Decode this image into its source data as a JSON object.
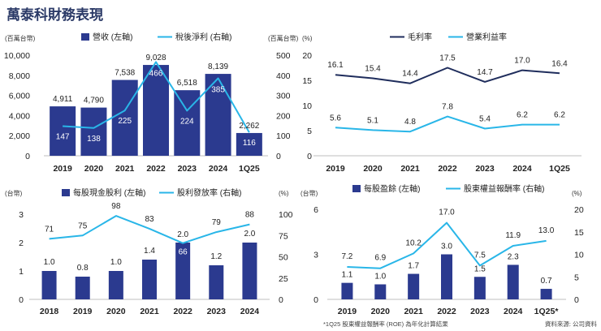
{
  "page": {
    "title": "萬泰科財務表現",
    "footnote": "*1Q25 股東權益報酬率 (ROE) 為年化計算結果",
    "source": "資料來源: 公司資料"
  },
  "colors": {
    "bar": "#2b3a8f",
    "line": "#29b6e8"
  },
  "chart_data": [
    {
      "id": "revenue_net_income",
      "type": "bar+line",
      "categories": [
        "2019",
        "2020",
        "2021",
        "2022",
        "2023",
        "2024",
        "1Q25"
      ],
      "left_unit": "(百萬台幣)",
      "right_unit": "(百萬台幣)",
      "left_ticks": [
        "0",
        "2,000",
        "4,000",
        "6,000",
        "8,000",
        "10,000"
      ],
      "right_ticks": [
        "0",
        "100",
        "200",
        "300",
        "400",
        "500"
      ],
      "ylim_left": [
        0,
        10000
      ],
      "ylim_right": [
        0,
        500
      ],
      "series": [
        {
          "name": "營收 (左軸)",
          "kind": "bar",
          "axis": "left",
          "values": [
            4911,
            4790,
            7538,
            9028,
            6518,
            8139,
            2262
          ],
          "labels": [
            "4,911",
            "4,790",
            "7,538",
            "9,028",
            "6,518",
            "8,139",
            "2,262"
          ]
        },
        {
          "name": "稅後淨利 (右軸)",
          "kind": "line",
          "axis": "right",
          "values": [
            147,
            138,
            225,
            466,
            224,
            385,
            116
          ],
          "labels": [
            "147",
            "138",
            "225",
            "466",
            "224",
            "385",
            "116"
          ]
        }
      ]
    },
    {
      "id": "margins",
      "type": "line",
      "categories": [
        "2019",
        "2020",
        "2021",
        "2022",
        "2023",
        "2024",
        "1Q25"
      ],
      "left_unit": "(%)",
      "left_ticks": [
        "0",
        "5",
        "10",
        "15",
        "20"
      ],
      "ylim_left": [
        0,
        20
      ],
      "series": [
        {
          "name": "毛利率",
          "kind": "line",
          "axis": "left",
          "color": "#1f2d5c",
          "values": [
            16.1,
            15.4,
            14.4,
            17.5,
            14.7,
            17.0,
            16.4
          ],
          "labels": [
            "16.1",
            "15.4",
            "14.4",
            "17.5",
            "14.7",
            "17.0",
            "16.4"
          ]
        },
        {
          "name": "營業利益率",
          "kind": "line",
          "axis": "left",
          "color": "#29b6e8",
          "values": [
            5.6,
            5.1,
            4.8,
            7.8,
            5.4,
            6.2,
            6.2
          ],
          "labels": [
            "5.6",
            "5.1",
            "4.8",
            "7.8",
            "5.4",
            "6.2",
            "6.2"
          ]
        }
      ]
    },
    {
      "id": "dividends",
      "type": "bar+line",
      "categories": [
        "2018",
        "2019",
        "2020",
        "2021",
        "2022",
        "2023",
        "2024"
      ],
      "left_unit": "(台幣)",
      "right_unit": "(%)",
      "left_ticks": [
        "0",
        "1",
        "2",
        "3"
      ],
      "right_ticks": [
        "0",
        "25",
        "50",
        "75",
        "100"
      ],
      "ylim_left": [
        0,
        3
      ],
      "ylim_right": [
        0,
        100
      ],
      "series": [
        {
          "name": "每股現金股利 (左軸)",
          "kind": "bar",
          "axis": "left",
          "values": [
            1.0,
            0.8,
            1.0,
            1.4,
            2.0,
            1.2,
            2.0
          ],
          "labels": [
            "1.0",
            "0.8",
            "1.0",
            "1.4",
            "2.0",
            "1.2",
            "2.0"
          ]
        },
        {
          "name": "股利發放率 (右軸)",
          "kind": "line",
          "axis": "right",
          "values": [
            71,
            75,
            98,
            83,
            66,
            79,
            88
          ],
          "labels": [
            "71",
            "75",
            "98",
            "83",
            "66",
            "79",
            "88"
          ]
        }
      ]
    },
    {
      "id": "eps_roe",
      "type": "bar+line",
      "categories": [
        "2019",
        "2020",
        "2021",
        "2022",
        "2023",
        "2024",
        "1Q25*"
      ],
      "left_unit": "(台幣)",
      "right_unit": "(%)",
      "left_ticks": [
        "0",
        "3",
        "6"
      ],
      "right_ticks": [
        "0",
        "5",
        "10",
        "15",
        "20"
      ],
      "ylim_left": [
        0,
        6
      ],
      "ylim_right": [
        0,
        20
      ],
      "series": [
        {
          "name": "每股盈餘 (左軸)",
          "kind": "bar",
          "axis": "left",
          "values": [
            1.1,
            1.0,
            1.7,
            3.0,
            1.5,
            2.3,
            0.7
          ],
          "labels": [
            "1.1",
            "1.0",
            "1.7",
            "3.0",
            "1.5",
            "2.3",
            "0.7"
          ]
        },
        {
          "name": "股東權益報酬率 (右軸)",
          "kind": "line",
          "axis": "right",
          "values": [
            7.2,
            6.9,
            10.2,
            17.0,
            7.5,
            11.9,
            13.0
          ],
          "labels": [
            "7.2",
            "6.9",
            "10.2",
            "17.0",
            "7.5",
            "11.9",
            "13.0"
          ]
        }
      ]
    }
  ]
}
